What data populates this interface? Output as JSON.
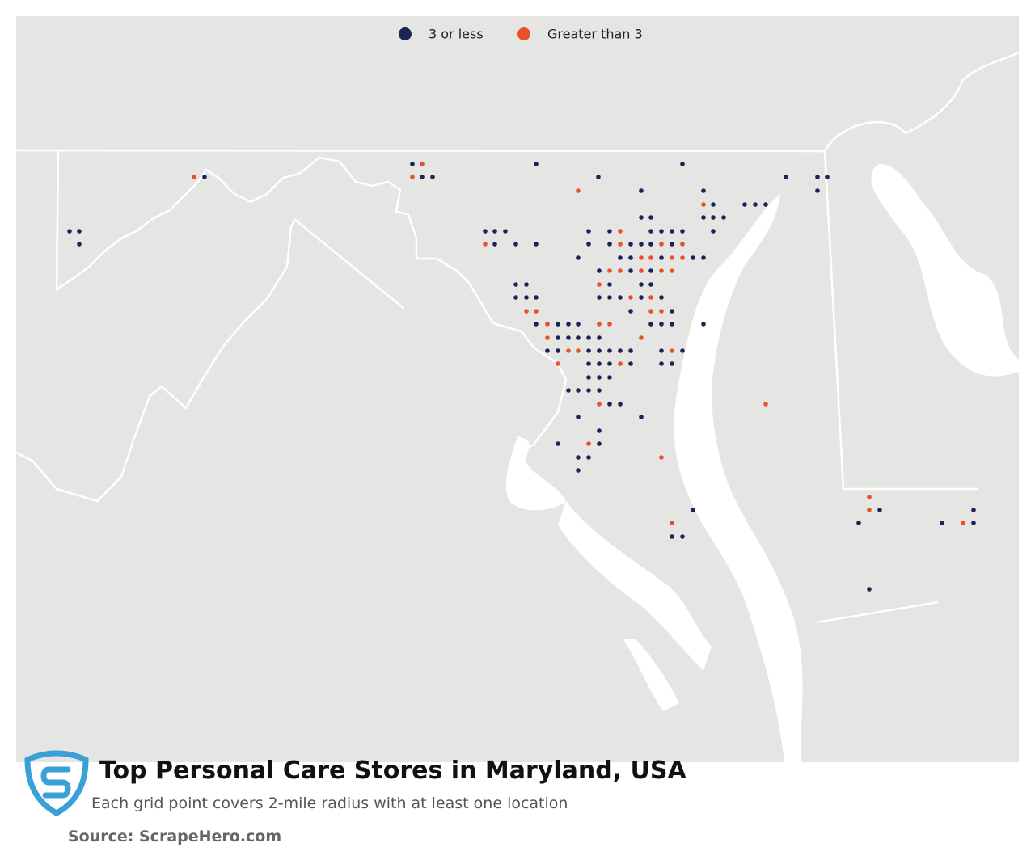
{
  "legend": [
    {
      "label": "3 or less",
      "color": "#1b2459"
    },
    {
      "label": "Greater than 3",
      "color": "#e8512a"
    }
  ],
  "title": "Top Personal Care Stores in Maryland, USA",
  "subtitle": "Each grid point covers 2-mile radius with at least one location",
  "source": "Source: ScrapeHero.com"
}
